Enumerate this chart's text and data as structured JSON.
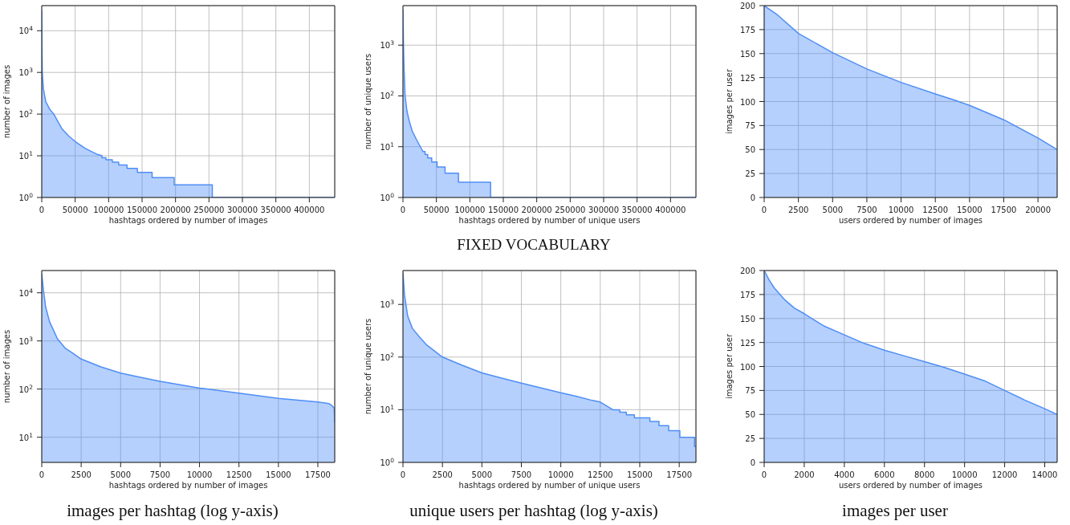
{
  "chart_data": [
    {
      "type": "area",
      "xlabel": "hashtags ordered by number of images",
      "ylabel": "number of images",
      "log": "y",
      "grid": true,
      "color": "#4f8ef7",
      "xlim": [
        0,
        438000
      ],
      "xticks": [
        0,
        50000,
        100000,
        150000,
        200000,
        250000,
        300000,
        350000,
        400000
      ],
      "ylim": [
        1,
        40000
      ],
      "yticks": [
        {
          "value": 1,
          "label": "10$^{0}$"
        },
        {
          "value": 10,
          "label": "10$^{1}$"
        },
        {
          "value": 100,
          "label": "10$^{2}$"
        },
        {
          "value": 1000,
          "label": "10$^{3}$"
        },
        {
          "value": 10000,
          "label": "10$^{4}$"
        }
      ],
      "x": [
        0,
        300,
        800,
        2500,
        6000,
        12000,
        18000,
        30000,
        40000,
        50000,
        65000,
        82000,
        90000,
        90000,
        96000,
        96000,
        105500,
        105500,
        115000,
        115000,
        127500,
        127500,
        143000,
        143000,
        165000,
        165000,
        198000,
        198000,
        255000,
        255000,
        438000
      ],
      "values": [
        30000,
        5000,
        1000,
        400,
        200,
        130,
        100,
        45,
        30,
        22,
        15,
        11,
        10,
        9,
        9,
        8,
        8,
        7,
        7,
        6,
        6,
        5,
        5,
        4,
        4,
        3,
        3,
        2,
        2,
        1,
        1
      ]
    },
    {
      "type": "area",
      "xlabel": "hashtags ordered by number of unique users",
      "ylabel": "number of unique users",
      "log": "y",
      "grid": true,
      "color": "#4f8ef7",
      "annotations": [
        "FIXED VOCABULARY"
      ],
      "xlim": [
        0,
        438000
      ],
      "xticks": [
        0,
        50000,
        100000,
        150000,
        200000,
        250000,
        300000,
        350000,
        400000
      ],
      "ylim": [
        1,
        6000
      ],
      "yticks": [
        {
          "value": 1,
          "label": "10$^{0}$"
        },
        {
          "value": 10,
          "label": "10$^{1}$"
        },
        {
          "value": 100,
          "label": "10$^{2}$"
        },
        {
          "value": 1000,
          "label": "10$^{3}$"
        }
      ],
      "x": [
        0,
        800,
        1500,
        3200,
        6000,
        10000,
        14000,
        20000,
        26000,
        30000,
        33000,
        33000,
        37000,
        37000,
        43000,
        43000,
        51000,
        51000,
        63000,
        63000,
        83000,
        83000,
        131000,
        131000,
        438000
      ],
      "values": [
        5000,
        1000,
        400,
        100,
        50,
        30,
        20,
        14,
        10,
        8,
        8,
        7,
        7,
        6,
        6,
        5,
        5,
        4,
        4,
        3,
        3,
        2,
        2,
        1,
        1
      ]
    },
    {
      "type": "area",
      "xlabel": "users ordered by number of images",
      "ylabel": "images per user",
      "grid": true,
      "color": "#4f8ef7",
      "xlim": [
        0,
        21400
      ],
      "xticks": [
        0,
        2500,
        5000,
        7500,
        10000,
        12500,
        15000,
        17500,
        20000
      ],
      "ylim": [
        0,
        200
      ],
      "yticks": [
        0,
        25,
        50,
        75,
        100,
        125,
        150,
        175,
        200
      ],
      "x": [
        0,
        1000,
        2500,
        5000,
        7500,
        10000,
        12500,
        14000,
        15000,
        17500,
        20000,
        21400
      ],
      "values": [
        200,
        190,
        171,
        151,
        134,
        120,
        108,
        101,
        96,
        81,
        62,
        50
      ]
    },
    {
      "type": "area",
      "title": "images per hashtag (log y-axis)",
      "xlabel": "hashtags ordered by number of images",
      "ylabel": "number of images",
      "log": "y",
      "grid": true,
      "color": "#4f8ef7",
      "xlim": [
        0,
        18570
      ],
      "xticks": [
        0,
        2500,
        5000,
        7500,
        10000,
        12500,
        15000,
        17500
      ],
      "ylim": [
        3,
        29000
      ],
      "yticks": [
        {
          "value": 10,
          "label": "10$^{1}$"
        },
        {
          "value": 100,
          "label": "10$^{2}$"
        },
        {
          "value": 1000,
          "label": "10$^{3}$"
        },
        {
          "value": 10000,
          "label": "10$^{4}$"
        }
      ],
      "x": [
        0,
        100,
        250,
        500,
        1000,
        1500,
        2000,
        2500,
        3750,
        5000,
        6250,
        7500,
        10000,
        12500,
        15000,
        17500,
        18200,
        18400,
        18540,
        18570
      ],
      "values": [
        25000,
        12000,
        5000,
        2500,
        1100,
        700,
        550,
        420,
        290,
        215,
        175,
        145,
        105,
        82,
        64,
        54,
        50,
        45,
        40,
        20
      ]
    },
    {
      "type": "area",
      "title": "unique users per hashtag (log y-axis)",
      "xlabel": "hashtags ordered by number of unique users",
      "ylabel": "number of unique users",
      "log": "y",
      "grid": true,
      "color": "#4f8ef7",
      "xlim": [
        0,
        18560
      ],
      "xticks": [
        0,
        2500,
        5000,
        7500,
        10000,
        12500,
        15000,
        17500
      ],
      "ylim": [
        1,
        4400
      ],
      "yticks": [
        {
          "value": 1,
          "label": "10$^{0}$"
        },
        {
          "value": 10,
          "label": "10$^{1}$"
        },
        {
          "value": 100,
          "label": "10$^{2}$"
        },
        {
          "value": 1000,
          "label": "10$^{3}$"
        }
      ],
      "x": [
        0,
        100,
        300,
        600,
        1000,
        1500,
        2500,
        3750,
        5000,
        6250,
        7500,
        8750,
        10000,
        11000,
        12000,
        12500,
        13300,
        13730,
        13730,
        14150,
        14150,
        14660,
        14660,
        15640,
        15640,
        16220,
        16220,
        16830,
        16830,
        17540,
        17540,
        18470,
        18470,
        18560
      ],
      "values": [
        4000,
        1500,
        600,
        350,
        250,
        170,
        100,
        70,
        50,
        40,
        32,
        26,
        21,
        18,
        15,
        14,
        10,
        10,
        9,
        9,
        8,
        8,
        7,
        7,
        6,
        6,
        5,
        5,
        4,
        4,
        3,
        3,
        2,
        2
      ]
    },
    {
      "type": "area",
      "title": "images per user",
      "xlabel": "users ordered by number of images",
      "ylabel": "images per user",
      "grid": true,
      "color": "#4f8ef7",
      "xlim": [
        0,
        14620
      ],
      "xticks": [
        0,
        2000,
        4000,
        6000,
        8000,
        10000,
        12000,
        14000
      ],
      "ylim": [
        0,
        200
      ],
      "yticks": [
        0,
        25,
        50,
        75,
        100,
        125,
        150,
        175,
        200
      ],
      "x": [
        0,
        250,
        500,
        1000,
        1500,
        2000,
        3000,
        4000,
        5000,
        6000,
        7000,
        8000,
        9000,
        10000,
        11000,
        12000,
        13000,
        14000,
        14620
      ],
      "values": [
        200,
        190,
        182,
        170,
        161,
        155,
        142,
        133,
        124,
        117,
        111,
        105,
        99,
        92,
        85,
        75,
        65,
        56,
        50
      ]
    }
  ]
}
